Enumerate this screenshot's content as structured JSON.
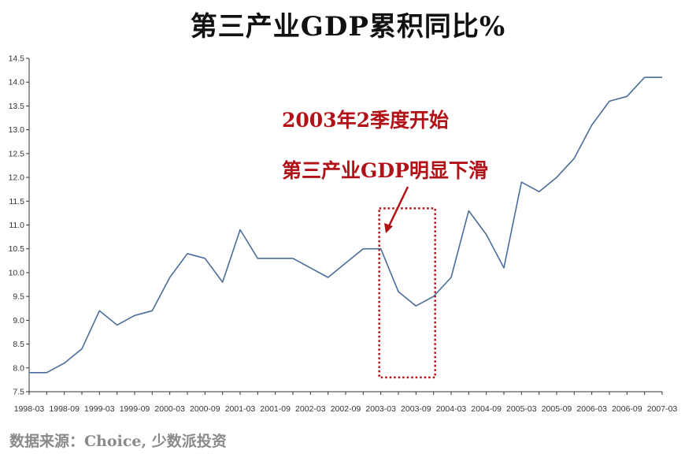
{
  "chart_data": {
    "type": "line",
    "title": "第三产业GDP累积同比%",
    "xlabel": "",
    "ylabel": "",
    "ylim": [
      7.5,
      14.5
    ],
    "y_ticks": [
      "7.5",
      "8.0",
      "8.5",
      "9.0",
      "9.5",
      "10.0",
      "10.5",
      "11.0",
      "11.5",
      "12.0",
      "12.5",
      "13.0",
      "13.5",
      "14.0",
      "14.5"
    ],
    "x_tick_labels": [
      "1998-03",
      "1998-09",
      "1999-03",
      "1999-09",
      "2000-03",
      "2000-09",
      "2001-03",
      "2001-09",
      "2002-03",
      "2002-09",
      "2003-03",
      "2003-09",
      "2004-03",
      "2004-09",
      "2005-03",
      "2005-09",
      "2006-03",
      "2006-09",
      "2007-03"
    ],
    "grid": false,
    "legend": "none",
    "series": [
      {
        "color": "#4a6d99",
        "x": [
          "1998-03",
          "1998-06",
          "1998-09",
          "1998-12",
          "1999-03",
          "1999-06",
          "1999-09",
          "1999-12",
          "2000-03",
          "2000-06",
          "2000-09",
          "2000-12",
          "2001-03",
          "2001-06",
          "2001-09",
          "2001-12",
          "2002-03",
          "2002-06",
          "2002-09",
          "2002-12",
          "2003-03",
          "2003-06",
          "2003-09",
          "2003-12",
          "2004-03",
          "2004-06",
          "2004-09",
          "2004-12",
          "2005-03",
          "2005-06",
          "2005-09",
          "2005-12",
          "2006-03",
          "2006-06",
          "2006-09",
          "2006-12",
          "2007-03"
        ],
        "values": [
          7.9,
          7.9,
          8.1,
          8.4,
          9.2,
          8.9,
          9.1,
          9.2,
          9.9,
          10.4,
          10.3,
          9.8,
          10.9,
          10.3,
          10.3,
          10.3,
          10.1,
          9.9,
          10.2,
          10.5,
          10.5,
          9.6,
          9.3,
          9.5,
          9.9,
          11.3,
          10.8,
          10.1,
          11.9,
          11.7,
          12.0,
          12.4,
          13.1,
          13.6,
          13.7,
          14.1,
          14.1
        ]
      }
    ],
    "annotations": [
      {
        "text": "2003年2季度开始"
      },
      {
        "text": "第三产业GDP明显下滑"
      }
    ],
    "annotation_color": "#b11218",
    "highlight_range": {
      "x_from": "2003-03",
      "x_to": "2003-12",
      "y_from": 7.8,
      "y_to": 11.35
    }
  },
  "source": "数据来源：Choice, 少数派投资"
}
